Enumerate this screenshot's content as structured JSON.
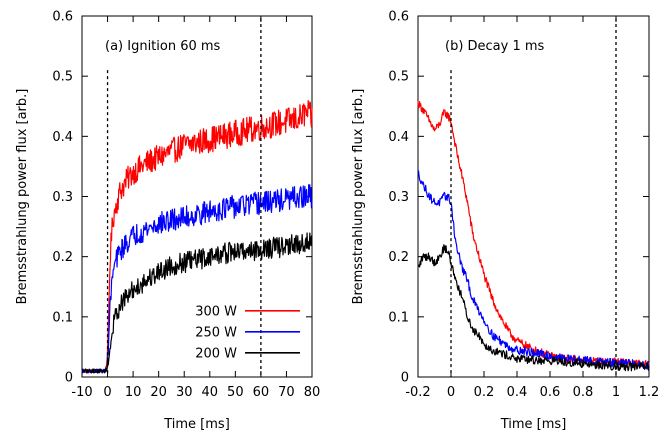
{
  "chart_data": [
    {
      "id": "ignition",
      "type": "line",
      "annotation": "(a) Ignition 60 ms",
      "xlabel": "Time [ms]",
      "ylabel": "Bremsstrahlung power flux [arb.]",
      "xlim": [
        -10,
        80
      ],
      "ylim": [
        0,
        0.6
      ],
      "xticks": [
        -10,
        0,
        10,
        20,
        30,
        40,
        50,
        60,
        70,
        80
      ],
      "yticks": [
        0,
        0.1,
        0.2,
        0.3,
        0.4,
        0.5,
        0.6
      ],
      "xtick_labels": [
        "-10",
        "0",
        "10",
        "20",
        "30",
        "40",
        "50",
        "60",
        "70",
        "80"
      ],
      "ytick_labels": [
        "0",
        "0.1",
        "0.2",
        "0.3",
        "0.4",
        "0.5",
        "0.6"
      ],
      "vlines": [
        0,
        60
      ],
      "legend": {
        "placement": "bottom-right"
      },
      "series": [
        {
          "name": "300 W",
          "color": "#ff0000",
          "x": [
            -10,
            -5,
            -1,
            0,
            1,
            2,
            3,
            5,
            8,
            10,
            15,
            20,
            25,
            30,
            35,
            40,
            45,
            50,
            55,
            60,
            65,
            70,
            75,
            78,
            80
          ],
          "y": [
            0.01,
            0.01,
            0.01,
            0.03,
            0.2,
            0.26,
            0.28,
            0.31,
            0.33,
            0.34,
            0.355,
            0.365,
            0.375,
            0.385,
            0.39,
            0.395,
            0.4,
            0.405,
            0.41,
            0.415,
            0.42,
            0.425,
            0.43,
            0.44,
            0.43
          ]
        },
        {
          "name": "250 W",
          "color": "#0000ff",
          "x": [
            -10,
            -5,
            -1,
            0,
            1,
            2,
            3,
            5,
            8,
            10,
            15,
            20,
            25,
            30,
            35,
            40,
            45,
            50,
            55,
            60,
            65,
            70,
            75,
            78,
            80
          ],
          "y": [
            0.01,
            0.01,
            0.01,
            0.02,
            0.12,
            0.17,
            0.19,
            0.21,
            0.225,
            0.235,
            0.245,
            0.255,
            0.26,
            0.265,
            0.27,
            0.275,
            0.28,
            0.283,
            0.286,
            0.289,
            0.292,
            0.295,
            0.298,
            0.3,
            0.3
          ]
        },
        {
          "name": "200 W",
          "color": "#000000",
          "x": [
            -10,
            -5,
            -1,
            0,
            1,
            2,
            3,
            5,
            8,
            10,
            15,
            20,
            25,
            30,
            35,
            40,
            45,
            50,
            55,
            60,
            65,
            70,
            75,
            78,
            80
          ],
          "y": [
            0.01,
            0.01,
            0.01,
            0.015,
            0.05,
            0.08,
            0.1,
            0.12,
            0.135,
            0.145,
            0.16,
            0.175,
            0.185,
            0.19,
            0.195,
            0.2,
            0.205,
            0.208,
            0.21,
            0.212,
            0.215,
            0.218,
            0.22,
            0.225,
            0.22
          ]
        }
      ]
    },
    {
      "id": "decay",
      "type": "line",
      "annotation": "(b) Decay 1 ms",
      "xlabel": "Time [ms]",
      "ylabel": "Bremsstrahlung power flux [arb.]",
      "xlim": [
        -0.2,
        1.2
      ],
      "ylim": [
        0,
        0.6
      ],
      "xticks": [
        -0.2,
        0,
        0.2,
        0.4,
        0.6,
        0.8,
        1,
        1.2
      ],
      "yticks": [
        0,
        0.1,
        0.2,
        0.3,
        0.4,
        0.5,
        0.6
      ],
      "xtick_labels": [
        "-0.2",
        "0",
        "0.2",
        "0.4",
        "0.6",
        "0.8",
        "1",
        "1.2"
      ],
      "ytick_labels": [
        "0",
        "0.1",
        "0.2",
        "0.3",
        "0.4",
        "0.5",
        "0.6"
      ],
      "vlines": [
        0,
        1
      ],
      "series": [
        {
          "name": "300 W",
          "color": "#ff0000",
          "x": [
            -0.2,
            -0.17,
            -0.13,
            -0.1,
            -0.07,
            -0.04,
            -0.02,
            0,
            0.03,
            0.07,
            0.1,
            0.13,
            0.17,
            0.2,
            0.25,
            0.3,
            0.35,
            0.4,
            0.5,
            0.6,
            0.7,
            0.8,
            0.9,
            1.0,
            1.1,
            1.2
          ],
          "y": [
            0.455,
            0.445,
            0.425,
            0.41,
            0.42,
            0.44,
            0.435,
            0.425,
            0.38,
            0.33,
            0.29,
            0.24,
            0.2,
            0.17,
            0.13,
            0.1,
            0.075,
            0.06,
            0.045,
            0.035,
            0.03,
            0.028,
            0.025,
            0.025,
            0.022,
            0.02
          ]
        },
        {
          "name": "250 W",
          "color": "#0000ff",
          "x": [
            -0.2,
            -0.17,
            -0.13,
            -0.1,
            -0.07,
            -0.04,
            -0.02,
            0,
            0.03,
            0.07,
            0.1,
            0.13,
            0.17,
            0.2,
            0.25,
            0.3,
            0.35,
            0.4,
            0.5,
            0.6,
            0.7,
            0.8,
            0.9,
            1.0,
            1.1,
            1.2
          ],
          "y": [
            0.34,
            0.32,
            0.3,
            0.29,
            0.29,
            0.3,
            0.3,
            0.29,
            0.22,
            0.18,
            0.16,
            0.13,
            0.11,
            0.095,
            0.07,
            0.06,
            0.05,
            0.045,
            0.04,
            0.035,
            0.03,
            0.028,
            0.025,
            0.023,
            0.022,
            0.02
          ]
        },
        {
          "name": "200 W",
          "color": "#000000",
          "x": [
            -0.2,
            -0.17,
            -0.13,
            -0.1,
            -0.07,
            -0.04,
            -0.02,
            0,
            0.03,
            0.07,
            0.1,
            0.13,
            0.17,
            0.2,
            0.25,
            0.3,
            0.35,
            0.4,
            0.5,
            0.6,
            0.7,
            0.8,
            0.9,
            1.0,
            1.1,
            1.2
          ],
          "y": [
            0.18,
            0.2,
            0.2,
            0.19,
            0.2,
            0.215,
            0.21,
            0.19,
            0.16,
            0.13,
            0.1,
            0.08,
            0.07,
            0.055,
            0.045,
            0.04,
            0.035,
            0.03,
            0.028,
            0.027,
            0.025,
            0.022,
            0.02,
            0.018,
            0.017,
            0.016
          ]
        }
      ]
    }
  ]
}
